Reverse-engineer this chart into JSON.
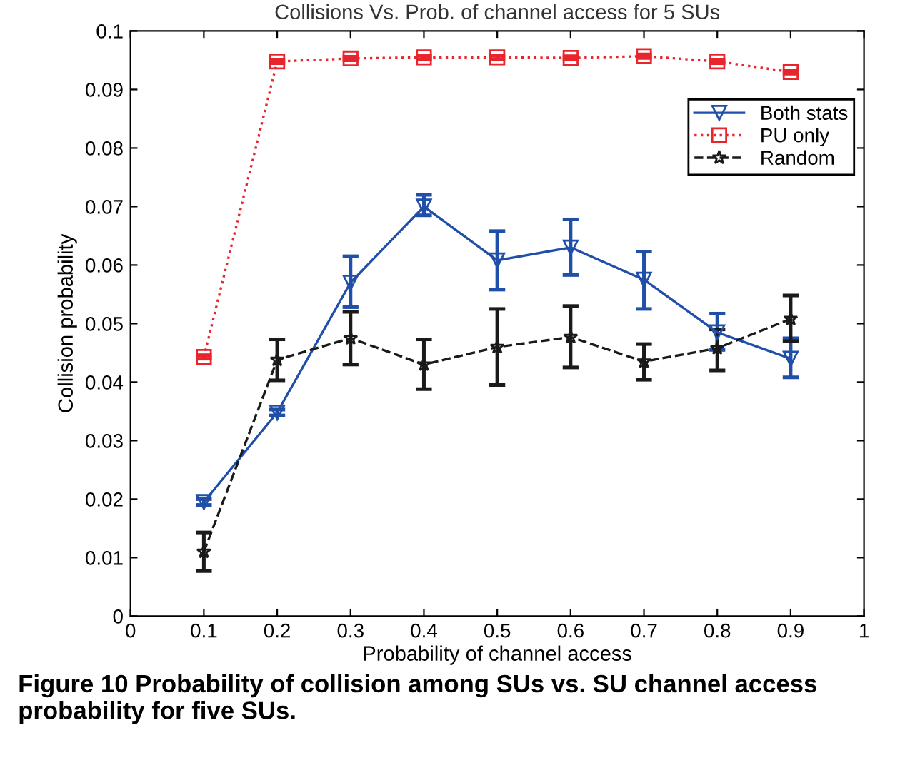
{
  "chart_data": {
    "type": "line",
    "title": "Collisions Vs. Prob. of channel access for 5 SUs",
    "xlabel": "Probability of channel access",
    "ylabel": "Collision probability",
    "x": [
      0.1,
      0.2,
      0.3,
      0.4,
      0.5,
      0.6,
      0.7,
      0.8,
      0.9
    ],
    "series": [
      {
        "name": "Both stats",
        "color": "#1f4fa8",
        "marker": "triangle",
        "line_style": "solid",
        "values": [
          0.0195,
          0.0348,
          0.057,
          0.07,
          0.0608,
          0.063,
          0.0575,
          0.0485,
          0.044
        ],
        "errors": [
          0.0005,
          0.0005,
          [
            0.0528,
            0.0615
          ],
          [
            0.0685,
            0.072
          ],
          [
            0.0558,
            0.0658
          ],
          [
            0.0583,
            0.0678
          ],
          [
            0.0525,
            0.0623
          ],
          [
            0.0455,
            0.0517
          ],
          [
            0.0408,
            0.0475
          ]
        ]
      },
      {
        "name": "PU only",
        "color": "#e8242c",
        "marker": "square",
        "line_style": "dotted",
        "values": [
          0.0443,
          0.0948,
          0.0953,
          0.0955,
          0.0955,
          0.0954,
          0.0957,
          0.0948,
          0.093
        ],
        "errors": [
          0.0003,
          0.0003,
          0.0003,
          0.0003,
          0.0003,
          0.0003,
          0.0003,
          0.0003,
          0.0003
        ]
      },
      {
        "name": "Random",
        "color": "#1a1a1a",
        "marker": "star",
        "line_style": "dashed",
        "values": [
          0.011,
          0.0438,
          0.0475,
          0.043,
          0.046,
          0.0477,
          0.0435,
          0.0458,
          0.0508
        ],
        "errors": [
          [
            0.0077,
            0.0143
          ],
          [
            0.0403,
            0.0473
          ],
          [
            0.043,
            0.052
          ],
          [
            0.0388,
            0.0473
          ],
          [
            0.0395,
            0.0525
          ],
          [
            0.0425,
            0.053
          ],
          [
            0.0404,
            0.0465
          ],
          [
            0.042,
            0.049
          ],
          [
            0.047,
            0.0548
          ]
        ]
      }
    ],
    "xlim": [
      0,
      1
    ],
    "xticks": [
      0,
      0.1,
      0.2,
      0.3,
      0.4,
      0.5,
      0.6,
      0.7,
      0.8,
      0.9,
      1
    ],
    "ylim": [
      0,
      0.1
    ],
    "yticks": [
      0,
      0.01,
      0.02,
      0.03,
      0.04,
      0.05,
      0.06,
      0.07,
      0.08,
      0.09,
      0.1
    ],
    "grid": false,
    "legend": "top right",
    "annotations": [
      "Figure 10 Probability of collision among SUs vs. SU channel access probability for five SUs."
    ]
  }
}
